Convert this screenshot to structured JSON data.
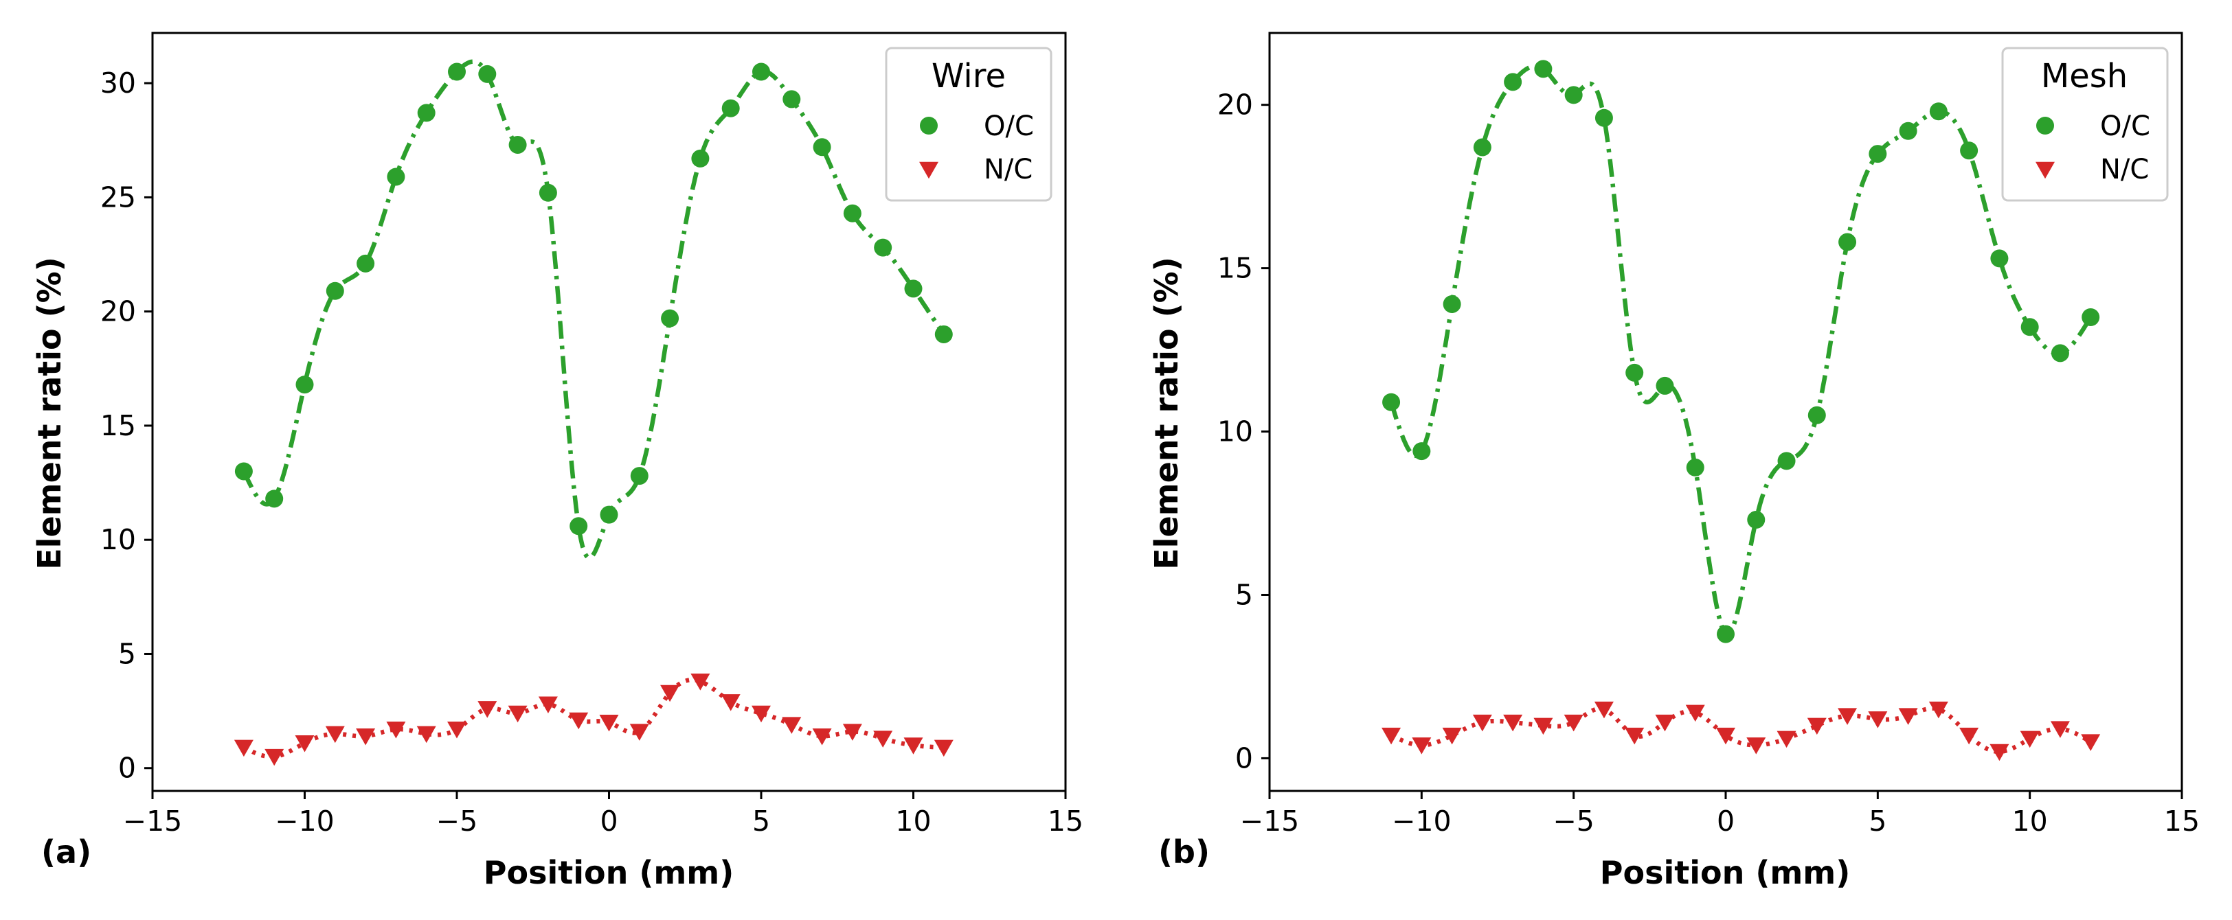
{
  "chart_data": [
    {
      "type": "scatter",
      "panel_label": "(a)",
      "legend_title": "Wire",
      "legend_position": "top-right",
      "xlabel": "Position (mm)",
      "ylabel": "Element ratio (%)",
      "xlim": [
        -15,
        15
      ],
      "ylim": [
        -1,
        32.2
      ],
      "xticks": [
        -15,
        -10,
        -5,
        0,
        5,
        10,
        15
      ],
      "xtick_labels": [
        "−15",
        "−10",
        "−5",
        "0",
        "5",
        "10",
        "15"
      ],
      "yticks": [
        0,
        5,
        10,
        15,
        20,
        25,
        30
      ],
      "ytick_labels": [
        "0",
        "5",
        "10",
        "15",
        "20",
        "25",
        "30"
      ],
      "grid": false,
      "series": [
        {
          "name": "O/C",
          "marker": "circle",
          "line_style": "dashdot",
          "color": "#2ca02c",
          "x": [
            -12,
            -11,
            -10,
            -9,
            -8,
            -7,
            -6,
            -5,
            -4,
            -3,
            -2,
            -1,
            0,
            1,
            2,
            3,
            4,
            5,
            6,
            7,
            8,
            9,
            10,
            11
          ],
          "y": [
            13.0,
            11.8,
            16.8,
            20.9,
            22.1,
            25.9,
            28.7,
            30.5,
            30.4,
            27.3,
            25.2,
            10.6,
            11.1,
            12.8,
            19.7,
            26.7,
            28.9,
            30.5,
            29.3,
            27.2,
            24.3,
            22.8,
            21.0,
            19.0
          ]
        },
        {
          "name": "N/C",
          "marker": "triangle-down",
          "line_style": "dotted",
          "color": "#d62728",
          "x": [
            -12,
            -11,
            -10,
            -9,
            -8,
            -7,
            -6,
            -5,
            -4,
            -3,
            -2,
            -1,
            0,
            1,
            2,
            3,
            4,
            5,
            6,
            7,
            8,
            9,
            10,
            11
          ],
          "y": [
            0.9,
            0.5,
            1.1,
            1.5,
            1.4,
            1.7,
            1.5,
            1.7,
            2.6,
            2.4,
            2.8,
            2.1,
            2.0,
            1.6,
            3.3,
            3.8,
            2.9,
            2.4,
            1.9,
            1.4,
            1.6,
            1.3,
            1.0,
            0.9
          ]
        }
      ]
    },
    {
      "type": "scatter",
      "panel_label": "(b)",
      "legend_title": "Mesh",
      "legend_position": "top-right",
      "xlabel": "Position (mm)",
      "ylabel": "Element ratio (%)",
      "xlim": [
        -15,
        15
      ],
      "ylim": [
        -1,
        22.2
      ],
      "xticks": [
        -15,
        -10,
        -5,
        0,
        5,
        10,
        15
      ],
      "xtick_labels": [
        "−15",
        "−10",
        "−5",
        "0",
        "5",
        "10",
        "15"
      ],
      "yticks": [
        0,
        5,
        10,
        15,
        20
      ],
      "ytick_labels": [
        "0",
        "5",
        "10",
        "15",
        "20"
      ],
      "grid": false,
      "series": [
        {
          "name": "O/C",
          "marker": "circle",
          "line_style": "dashdot",
          "color": "#2ca02c",
          "x": [
            -11,
            -10,
            -9,
            -8,
            -7,
            -6,
            -5,
            -4,
            -3,
            -2,
            -1,
            0,
            1,
            2,
            3,
            4,
            5,
            6,
            7,
            8,
            9,
            10,
            11,
            12
          ],
          "y": [
            10.9,
            9.4,
            13.9,
            18.7,
            20.7,
            21.1,
            20.3,
            19.6,
            11.8,
            11.4,
            8.9,
            3.8,
            7.3,
            9.1,
            10.5,
            15.8,
            18.5,
            19.2,
            19.8,
            18.6,
            15.3,
            13.2,
            12.4,
            13.5
          ]
        },
        {
          "name": "N/C",
          "marker": "triangle-down",
          "line_style": "dotted",
          "color": "#d62728",
          "x": [
            -11,
            -10,
            -9,
            -8,
            -7,
            -6,
            -5,
            -4,
            -3,
            -2,
            -1,
            0,
            1,
            2,
            3,
            4,
            5,
            6,
            7,
            8,
            9,
            10,
            11,
            12
          ],
          "y": [
            0.7,
            0.4,
            0.7,
            1.1,
            1.1,
            1.0,
            1.1,
            1.5,
            0.7,
            1.1,
            1.4,
            0.7,
            0.4,
            0.6,
            1.0,
            1.3,
            1.2,
            1.3,
            1.5,
            0.7,
            0.2,
            0.6,
            0.9,
            0.5
          ]
        }
      ]
    }
  ]
}
